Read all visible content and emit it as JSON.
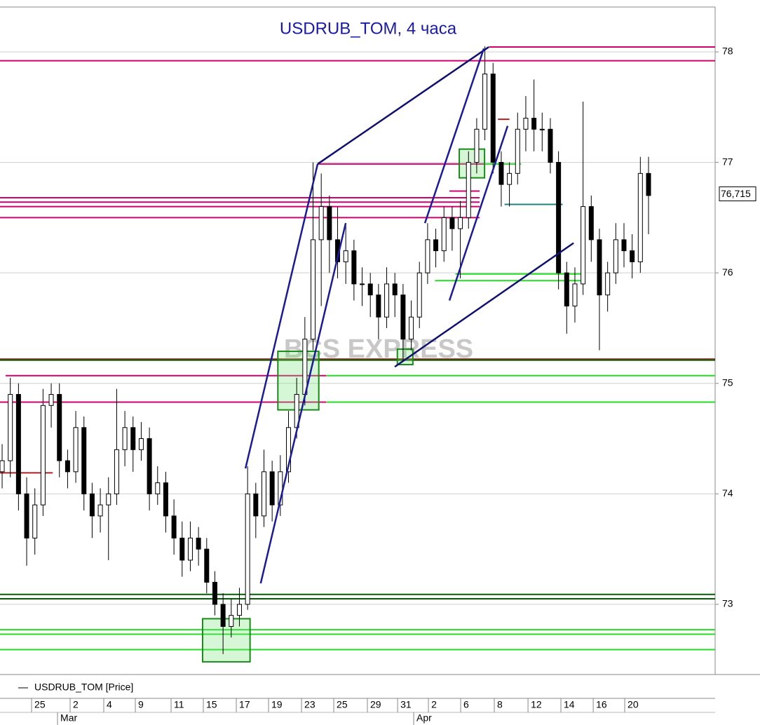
{
  "chart_data": {
    "type": "candlestick",
    "title": "USDRUB_TOM, 4 часа",
    "series_name": "USDRUB_TOM [Price]",
    "watermark": "BCS EXPRESS",
    "last_price": {
      "value": 76.715,
      "label": "76,715"
    },
    "ylim": [
      72.365,
      78.406
    ],
    "yticks": [
      73,
      74,
      75,
      76,
      77,
      78
    ],
    "xlim": [
      -0.26,
      87.14
    ],
    "xticks": [
      {
        "value": 3.6,
        "label": "25"
      },
      {
        "value": 8.31,
        "label": "2"
      },
      {
        "value": 12.42,
        "label": "4"
      },
      {
        "value": 16.28,
        "label": "9"
      },
      {
        "value": 20.65,
        "label": "11"
      },
      {
        "value": 24.59,
        "label": "15"
      },
      {
        "value": 28.62,
        "label": "17"
      },
      {
        "value": 32.56,
        "label": "19"
      },
      {
        "value": 36.59,
        "label": "23"
      },
      {
        "value": 40.53,
        "label": "25"
      },
      {
        "value": 44.64,
        "label": "29"
      },
      {
        "value": 48.33,
        "label": "31"
      },
      {
        "value": 52.1,
        "label": "2"
      },
      {
        "value": 56.04,
        "label": "6"
      },
      {
        "value": 60.15,
        "label": "8"
      },
      {
        "value": 64.27,
        "label": "12"
      },
      {
        "value": 68.29,
        "label": "14"
      },
      {
        "value": 72.24,
        "label": "16"
      },
      {
        "value": 76.09,
        "label": "20"
      }
    ],
    "month_ticks": [
      {
        "value": 6.77,
        "label": "Mar"
      },
      {
        "value": 50.3,
        "label": "Apr"
      }
    ],
    "grid": true,
    "up_color": "#ffffff",
    "down_color": "#000000",
    "x": [
      0,
      1,
      2,
      3,
      4,
      5,
      6,
      7,
      8,
      9,
      10,
      11,
      12,
      13,
      14,
      15,
      16,
      17,
      18,
      19,
      20,
      21,
      22,
      23,
      24,
      25,
      26,
      27,
      28,
      29,
      30,
      31,
      32,
      33,
      34,
      35,
      36,
      37,
      38,
      39,
      40,
      41,
      42,
      43,
      44,
      45,
      46,
      47,
      48,
      49,
      50,
      51,
      52,
      53,
      54,
      55,
      56,
      57,
      58,
      59,
      60,
      61,
      62,
      63,
      64,
      65,
      66,
      67,
      68,
      69,
      70,
      71,
      72,
      73,
      74,
      75,
      76,
      77,
      78,
      79
    ],
    "open": [
      74.2,
      74.3,
      74.9,
      74.0,
      73.6,
      73.9,
      74.8,
      74.9,
      74.3,
      74.2,
      74.6,
      74.0,
      73.8,
      73.9,
      74.0,
      74.4,
      74.6,
      74.4,
      74.5,
      74.0,
      74.1,
      73.8,
      73.6,
      73.4,
      73.6,
      73.5,
      73.2,
      73.0,
      72.8,
      72.9,
      73.0,
      74.0,
      73.8,
      74.2,
      73.9,
      74.2,
      74.6,
      74.9,
      75.4,
      76.3,
      76.6,
      76.3,
      76.1,
      76.2,
      75.9,
      75.9,
      75.8,
      75.6,
      75.9,
      75.8,
      75.4,
      75.6,
      76.0,
      76.3,
      76.2,
      76.5,
      76.4,
      76.5,
      77.0,
      77.3,
      77.8,
      77.0,
      76.8,
      76.9,
      77.3,
      77.4,
      77.3,
      77.3,
      77.0,
      76.0,
      75.7,
      75.9,
      76.6,
      76.3,
      75.8,
      76.0,
      76.3,
      76.2,
      76.1,
      76.9
    ],
    "high": [
      74.45,
      75.05,
      75.0,
      74.15,
      74.05,
      74.95,
      75.0,
      75.0,
      74.4,
      74.75,
      74.7,
      74.1,
      74.05,
      74.15,
      74.95,
      74.75,
      74.7,
      74.65,
      74.6,
      74.25,
      74.2,
      73.95,
      73.75,
      73.75,
      73.7,
      73.6,
      73.3,
      73.1,
      73.05,
      73.15,
      74.25,
      74.1,
      74.4,
      74.3,
      74.35,
      74.75,
      75.05,
      75.6,
      77.0,
      76.9,
      76.7,
      76.6,
      76.45,
      76.3,
      76.05,
      76.0,
      75.9,
      76.05,
      76.0,
      75.9,
      75.75,
      76.1,
      76.45,
      76.4,
      76.6,
      76.6,
      76.65,
      77.1,
      77.4,
      78.05,
      77.9,
      77.1,
      77.0,
      77.45,
      77.6,
      77.75,
      77.45,
      77.4,
      77.1,
      76.1,
      76.05,
      77.55,
      76.7,
      76.4,
      76.1,
      76.45,
      76.45,
      76.35,
      77.05,
      77.05
    ],
    "low": [
      74.05,
      74.15,
      73.85,
      73.35,
      73.45,
      73.8,
      74.6,
      74.15,
      74.05,
      74.1,
      73.85,
      73.6,
      73.65,
      73.4,
      73.9,
      74.25,
      74.2,
      74.3,
      73.85,
      73.9,
      73.65,
      73.45,
      73.25,
      73.3,
      73.35,
      73.1,
      72.9,
      72.55,
      72.7,
      72.8,
      72.95,
      73.6,
      73.7,
      73.75,
      73.8,
      74.1,
      74.5,
      74.8,
      75.3,
      75.7,
      76.0,
      75.95,
      75.9,
      75.75,
      75.7,
      75.6,
      75.4,
      75.5,
      75.6,
      75.2,
      75.3,
      75.5,
      75.9,
      76.05,
      76.1,
      76.2,
      75.95,
      76.4,
      76.9,
      77.2,
      76.9,
      76.6,
      76.6,
      76.8,
      77.1,
      77.1,
      77.1,
      76.9,
      75.85,
      75.45,
      75.55,
      75.8,
      76.1,
      75.3,
      75.65,
      75.9,
      76.05,
      75.95,
      76.0,
      76.35
    ],
    "close": [
      74.3,
      74.9,
      74.0,
      73.6,
      73.9,
      74.8,
      74.9,
      74.3,
      74.2,
      74.6,
      74.0,
      73.8,
      73.9,
      74.0,
      74.4,
      74.6,
      74.4,
      74.5,
      74.0,
      74.1,
      73.8,
      73.6,
      73.4,
      73.6,
      73.5,
      73.2,
      73.0,
      72.8,
      72.9,
      73.0,
      74.0,
      73.8,
      74.2,
      73.9,
      74.2,
      74.6,
      74.9,
      75.4,
      76.3,
      76.6,
      76.3,
      76.1,
      76.2,
      75.9,
      75.9,
      75.8,
      75.6,
      75.9,
      75.8,
      75.4,
      75.6,
      76.0,
      76.3,
      76.2,
      76.5,
      76.4,
      76.5,
      77.0,
      77.3,
      77.8,
      77.0,
      76.8,
      76.9,
      77.3,
      77.4,
      77.3,
      77.3,
      77.0,
      76.0,
      75.7,
      75.9,
      76.6,
      76.3,
      75.8,
      76.0,
      76.3,
      76.2,
      76.1,
      76.9,
      76.7
    ],
    "levels": [
      {
        "value": 78.044,
        "x": [
          59.5,
          87.14
        ],
        "color": "#d0006f"
      },
      {
        "value": 77.92,
        "x": [
          -0.26,
          87.14
        ],
        "color": "#d0006f"
      },
      {
        "value": 76.985,
        "x": [
          38.56,
          58.87
        ],
        "color": "#d0006f"
      },
      {
        "value": 76.74,
        "x": [
          54.67,
          58.36
        ],
        "color": "#d0006f"
      },
      {
        "value": 76.68,
        "x": [
          -0.26,
          58.36
        ],
        "color": "#d0006f"
      },
      {
        "value": 76.64,
        "x": [
          -0.26,
          58.36
        ],
        "color": "#d0006f"
      },
      {
        "value": 76.6,
        "x": [
          -0.26,
          58.36
        ],
        "color": "#d0006f"
      },
      {
        "value": 76.5,
        "x": [
          -0.26,
          58.36
        ],
        "color": "#d0006f"
      },
      {
        "value": 75.07,
        "x": [
          0.43,
          39.6
        ],
        "color": "#d0006f"
      },
      {
        "value": 74.83,
        "x": [
          -0.26,
          39.6
        ],
        "color": "#d0006f"
      },
      {
        "value": 75.07,
        "x": [
          39.6,
          87.14
        ],
        "color": "#22dd22"
      },
      {
        "value": 74.83,
        "x": [
          39.6,
          87.14
        ],
        "color": "#22dd22"
      },
      {
        "value": 76.985,
        "x": [
          58.87,
          63.4
        ],
        "color": "#22dd22"
      },
      {
        "value": 75.99,
        "x": [
          55.4,
          71.0
        ],
        "color": "#22dd22"
      },
      {
        "value": 75.93,
        "x": [
          52.9,
          71.0
        ],
        "color": "#22dd22"
      },
      {
        "value": 72.77,
        "x": [
          -0.26,
          87.14
        ],
        "color": "#22dd22"
      },
      {
        "value": 72.73,
        "x": [
          -0.26,
          87.14
        ],
        "color": "#22dd22"
      },
      {
        "value": 72.59,
        "x": [
          -0.26,
          87.14
        ],
        "color": "#22dd22"
      },
      {
        "value": 75.22,
        "x": [
          -0.26,
          87.14
        ],
        "color": "#b02020"
      },
      {
        "value": 74.19,
        "x": [
          -0.26,
          6.17
        ],
        "color": "#b02020"
      },
      {
        "value": 77.39,
        "x": [
          60.6,
          62.0
        ],
        "color": "#b02020"
      },
      {
        "value": 75.21,
        "x": [
          -0.26,
          87.14
        ],
        "color": "#006000"
      },
      {
        "value": 73.09,
        "x": [
          -0.26,
          87.14
        ],
        "color": "#006000"
      },
      {
        "value": 73.05,
        "x": [
          -0.26,
          87.14
        ],
        "color": "#006000"
      },
      {
        "value": 76.62,
        "x": [
          61.4,
          68.5
        ],
        "color": "#208080"
      }
    ],
    "trendlines": [
      {
        "x": [
          29.74,
          38.56
        ],
        "y": [
          74.23,
          76.985
        ],
        "color": "#1a1a9a"
      },
      {
        "x": [
          38.56,
          59.47
        ],
        "y": [
          76.985,
          78.044
        ],
        "color": "#101070"
      },
      {
        "x": [
          31.6,
          41.99
        ],
        "y": [
          73.19,
          76.45
        ],
        "color": "#1a1a9a"
      },
      {
        "x": [
          51.67,
          58.87
        ],
        "y": [
          76.45,
          78.03
        ],
        "color": "#1a1a9a"
      },
      {
        "x": [
          54.67,
          61.78
        ],
        "y": [
          75.75,
          77.33
        ],
        "color": "#1a1a9a"
      },
      {
        "x": [
          47.99,
          69.84
        ],
        "y": [
          75.15,
          76.27
        ],
        "color": "#101070"
      }
    ],
    "boxes": [
      {
        "x": [
          24.5,
          30.3
        ],
        "y": [
          72.87,
          72.48
        ]
      },
      {
        "x": [
          33.7,
          38.7
        ],
        "y": [
          75.29,
          74.76
        ]
      },
      {
        "x": [
          48.3,
          50.2
        ],
        "y": [
          75.31,
          75.17
        ]
      },
      {
        "x": [
          55.87,
          58.96
        ],
        "y": [
          77.12,
          76.86
        ]
      }
    ]
  }
}
